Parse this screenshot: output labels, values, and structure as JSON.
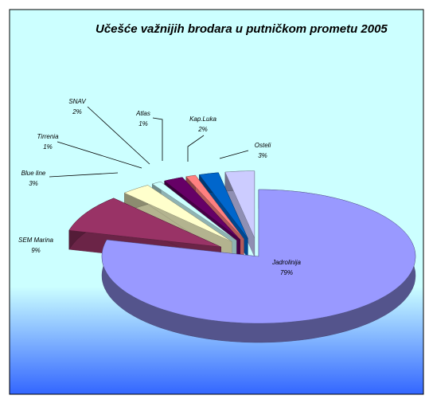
{
  "chart_data": {
    "type": "pie",
    "title": "Učešće važnijih brodara u putničkom prometu 2005",
    "categories": [
      "Jadrolinija",
      "SEM Marina",
      "Blue line",
      "Tirrenia",
      "SNAV",
      "Atlas",
      "Kap.Luka",
      "Osteli"
    ],
    "values": [
      79,
      9,
      3,
      1,
      2,
      1,
      2,
      3
    ],
    "value_labels": [
      "79%",
      "9%",
      "3%",
      "1%",
      "2%",
      "1%",
      "2%",
      "3%"
    ],
    "colors": [
      "#9999ff",
      "#993366",
      "#ffffcc",
      "#ccffff",
      "#660066",
      "#ff8080",
      "#0066cc",
      "#ccccff"
    ]
  }
}
